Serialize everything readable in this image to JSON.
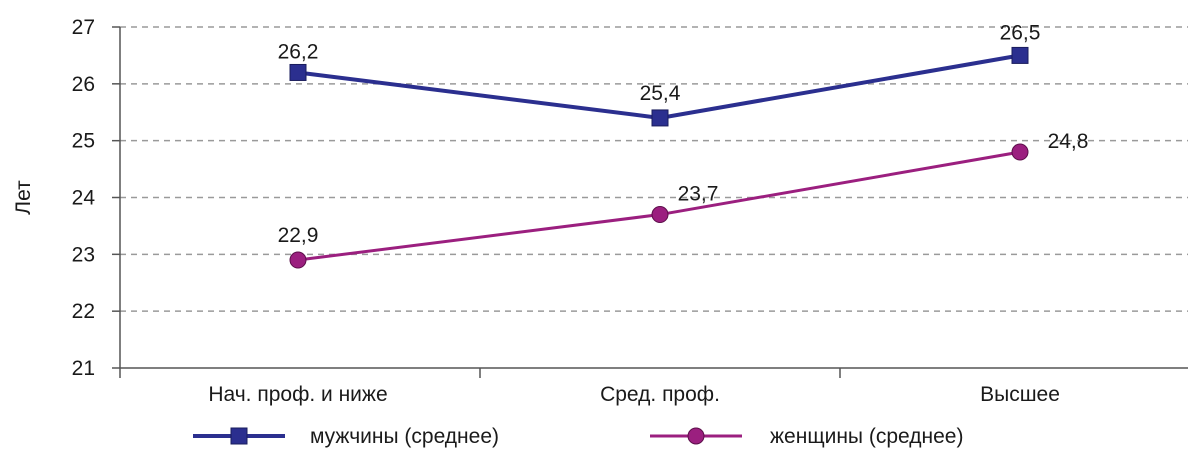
{
  "chart_data": {
    "type": "line",
    "ylabel": "Лет",
    "xlabel": "",
    "ylim": [
      21,
      27
    ],
    "yticks": [
      21,
      22,
      23,
      24,
      25,
      26,
      27
    ],
    "ytick_labels": [
      "21",
      "22",
      "23",
      "24",
      "25",
      "26",
      "27"
    ],
    "categories": [
      "Нач. проф. и ниже",
      "Сред. проф.",
      "Высшее"
    ],
    "grid": true,
    "legend_position": "bottom",
    "series": [
      {
        "name": "мужчины (среднее)",
        "values": [
          26.2,
          25.4,
          26.5
        ],
        "labels": [
          "26,2",
          "25,4",
          "26,5"
        ],
        "color": "#2b2f8f",
        "marker": "square"
      },
      {
        "name": "женщины (среднее)",
        "values": [
          22.9,
          23.7,
          24.8
        ],
        "labels": [
          "22,9",
          "23,7",
          "24,8"
        ],
        "color": "#9b1f7f",
        "marker": "circle"
      }
    ]
  }
}
